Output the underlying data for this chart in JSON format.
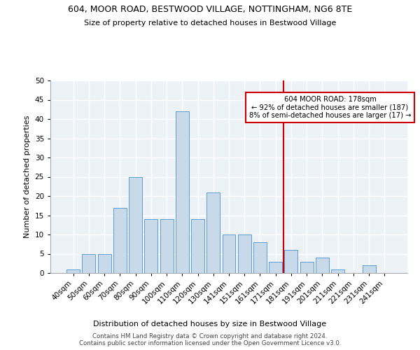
{
  "title1": "604, MOOR ROAD, BESTWOOD VILLAGE, NOTTINGHAM, NG6 8TE",
  "title2": "Size of property relative to detached houses in Bestwood Village",
  "xlabel": "Distribution of detached houses by size in Bestwood Village",
  "ylabel": "Number of detached properties",
  "bar_color": "#c8d9ea",
  "bar_edge_color": "#5b9bd5",
  "bin_labels": [
    "40sqm",
    "50sqm",
    "60sqm",
    "70sqm",
    "80sqm",
    "90sqm",
    "100sqm",
    "110sqm",
    "120sqm",
    "130sqm",
    "141sqm",
    "151sqm",
    "161sqm",
    "171sqm",
    "181sqm",
    "191sqm",
    "201sqm",
    "211sqm",
    "221sqm",
    "231sqm",
    "241sqm"
  ],
  "bar_heights": [
    1,
    5,
    5,
    17,
    25,
    14,
    14,
    42,
    14,
    21,
    10,
    10,
    8,
    3,
    6,
    3,
    4,
    1,
    0,
    2,
    0
  ],
  "vline_x": 14,
  "vline_color": "#cc0000",
  "annotation_text": "604 MOOR ROAD: 178sqm\n← 92% of detached houses are smaller (187)\n8% of semi-detached houses are larger (17) →",
  "annotation_box_color": "#ffffff",
  "annotation_box_edge": "#cc0000",
  "ylim": [
    0,
    50
  ],
  "yticks": [
    0,
    5,
    10,
    15,
    20,
    25,
    30,
    35,
    40,
    45,
    50
  ],
  "footer": "Contains HM Land Registry data © Crown copyright and database right 2024.\nContains public sector information licensed under the Open Government Licence v3.0.",
  "bg_color": "#edf2f7"
}
